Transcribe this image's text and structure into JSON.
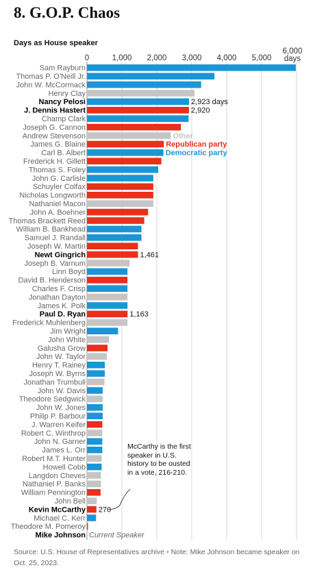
{
  "title": "8. G.O.P. Chaos",
  "subtitle": "Days as House speaker",
  "source": "Source: U.S. House of Representatives archive",
  "note": "Note: Mike Johnson became speaker on Oct. 25, 2023.",
  "annotation": "McCarthy is the first speaker in U.S. history to be ousted in a vote, 216-210.",
  "colors": {
    "republican": "#e8301c",
    "democratic": "#1a96d8",
    "other": "#c5c5c5",
    "highlight": "#000000",
    "label": "#666666"
  },
  "chart_data": {
    "type": "bar",
    "orientation": "horizontal",
    "xlim": [
      0,
      6000
    ],
    "x_ticks": [
      "0",
      "1,000",
      "2,000",
      "3,000",
      "4,000",
      "5,000",
      "6,000"
    ],
    "x_unit_label": "days",
    "legend": [
      {
        "label": "Other",
        "party": "other"
      },
      {
        "label": "Republican party",
        "party": "republican"
      },
      {
        "label": "Democratic party",
        "party": "democratic"
      }
    ],
    "bars": [
      {
        "name": "Sam Rayburn",
        "value": 6160,
        "party": "democratic"
      },
      {
        "name": "Thomas P. O'Neill Jr.",
        "value": 3650,
        "party": "democratic"
      },
      {
        "name": "John W. McCormack",
        "value": 3270,
        "party": "democratic"
      },
      {
        "name": "Henry Clay",
        "value": 3080,
        "party": "other"
      },
      {
        "name": "Nancy Pelosi",
        "value": 2923,
        "party": "democratic",
        "bold": true,
        "label": "2,923 days"
      },
      {
        "name": "J. Dennis Hastert",
        "value": 2920,
        "party": "republican",
        "bold": true,
        "label": "2,920"
      },
      {
        "name": "Champ Clark",
        "value": 2910,
        "party": "democratic"
      },
      {
        "name": "Joseph G. Cannon",
        "value": 2690,
        "party": "republican"
      },
      {
        "name": "Andrew Stevenson",
        "value": 2400,
        "party": "other"
      },
      {
        "name": "James G. Blaine",
        "value": 2200,
        "party": "republican"
      },
      {
        "name": "Carl B. Albert",
        "value": 2190,
        "party": "democratic"
      },
      {
        "name": "Frederick H. Gillett",
        "value": 2130,
        "party": "republican"
      },
      {
        "name": "Thomas S. Foley",
        "value": 2040,
        "party": "democratic"
      },
      {
        "name": "John G. Carlisle",
        "value": 1900,
        "party": "democratic"
      },
      {
        "name": "Schuyler Colfax",
        "value": 1900,
        "party": "republican"
      },
      {
        "name": "Nicholas Longworth",
        "value": 1900,
        "party": "republican"
      },
      {
        "name": "Nathaniel Macon",
        "value": 1900,
        "party": "other"
      },
      {
        "name": "John A. Boehner",
        "value": 1750,
        "party": "republican"
      },
      {
        "name": "Thomas Brackett Reed",
        "value": 1640,
        "party": "republican"
      },
      {
        "name": "William B. Bankhead",
        "value": 1560,
        "party": "democratic"
      },
      {
        "name": "Samuel J. Randall",
        "value": 1560,
        "party": "democratic"
      },
      {
        "name": "Joseph W. Martin",
        "value": 1461,
        "party": "republican"
      },
      {
        "name": "Newt Gingrich",
        "value": 1461,
        "party": "republican",
        "bold": true,
        "label": "1,461"
      },
      {
        "name": "Joseph B. Varnum",
        "value": 1220,
        "party": "other"
      },
      {
        "name": "Linn Boyd",
        "value": 1160,
        "party": "democratic"
      },
      {
        "name": "David B. Henderson",
        "value": 1160,
        "party": "republican"
      },
      {
        "name": "Charles F. Crisp",
        "value": 1160,
        "party": "democratic"
      },
      {
        "name": "Jonathan Dayton",
        "value": 1160,
        "party": "other"
      },
      {
        "name": "James K. Polk",
        "value": 1160,
        "party": "democratic"
      },
      {
        "name": "Paul D. Ryan",
        "value": 1163,
        "party": "republican",
        "bold": true,
        "label": "1,163"
      },
      {
        "name": "Frederick Muhlenberg",
        "value": 1160,
        "party": "other"
      },
      {
        "name": "Jim Wright",
        "value": 890,
        "party": "democratic"
      },
      {
        "name": "John White",
        "value": 630,
        "party": "other"
      },
      {
        "name": "Galusha Grow",
        "value": 590,
        "party": "republican"
      },
      {
        "name": "John W. Taylor",
        "value": 570,
        "party": "other"
      },
      {
        "name": "Henry T. Rainey",
        "value": 510,
        "party": "democratic"
      },
      {
        "name": "Joseph W. Byrns",
        "value": 510,
        "party": "democratic"
      },
      {
        "name": "Jonathan Trumbull",
        "value": 500,
        "party": "other"
      },
      {
        "name": "John W. Davis",
        "value": 450,
        "party": "democratic"
      },
      {
        "name": "Theodore Sedgwick",
        "value": 450,
        "party": "other"
      },
      {
        "name": "John W. Jones",
        "value": 450,
        "party": "democratic"
      },
      {
        "name": "Philip P. Barbour",
        "value": 450,
        "party": "democratic"
      },
      {
        "name": "J. Warren Keifer",
        "value": 440,
        "party": "republican"
      },
      {
        "name": "Robert C. Winthrop",
        "value": 440,
        "party": "other"
      },
      {
        "name": "John N. Garner",
        "value": 440,
        "party": "democratic"
      },
      {
        "name": "James L. Orr",
        "value": 440,
        "party": "democratic"
      },
      {
        "name": "Robert M.T. Hunter",
        "value": 420,
        "party": "other"
      },
      {
        "name": "Howell Cobb",
        "value": 420,
        "party": "democratic"
      },
      {
        "name": "Langdon Cheves",
        "value": 400,
        "party": "other"
      },
      {
        "name": "Nathaniel P. Banks",
        "value": 400,
        "party": "other"
      },
      {
        "name": "William Pennington",
        "value": 390,
        "party": "republican"
      },
      {
        "name": "John Bell",
        "value": 280,
        "party": "other"
      },
      {
        "name": "Kevin McCarthy",
        "value": 270,
        "party": "republican",
        "bold": true,
        "label": "270"
      },
      {
        "name": "Michael C. Kerr",
        "value": 260,
        "party": "democratic"
      },
      {
        "name": "Theodore M. Pomeroy",
        "value": 1,
        "party": "republican"
      },
      {
        "name": "Mike Johnson",
        "value": 0,
        "party": "republican",
        "bold": true,
        "label": "Current Speaker",
        "label_italic": true
      }
    ]
  }
}
